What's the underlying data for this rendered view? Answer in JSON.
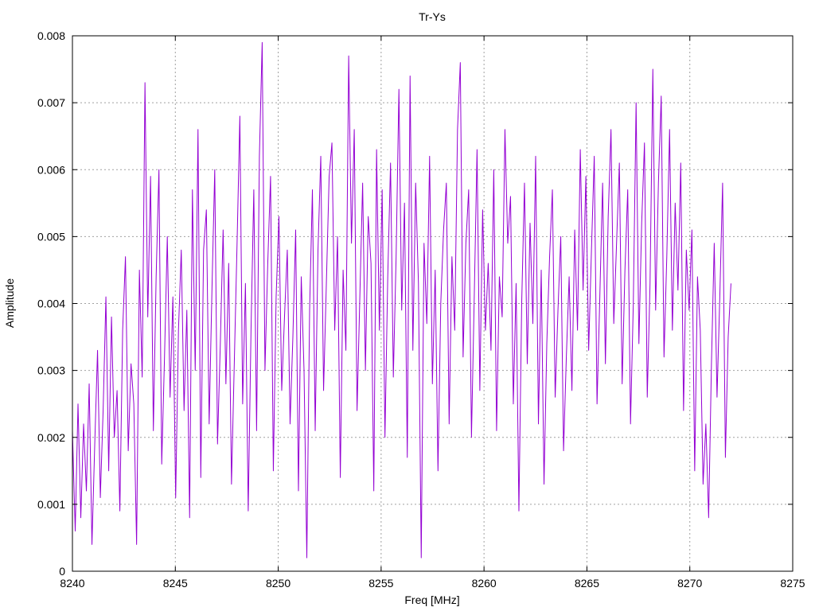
{
  "chart_data": {
    "type": "line",
    "title": "Tr-Ys",
    "xlabel": "Freq [MHz]",
    "ylabel": "Amplitude",
    "xlim": [
      8240,
      8275
    ],
    "ylim": [
      0,
      0.008
    ],
    "xticks": [
      "8240",
      "8245",
      "8250",
      "8255",
      "8260",
      "8265",
      "8270",
      "8275"
    ],
    "yticks": [
      "0",
      "0.001",
      "0.002",
      "0.003",
      "0.004",
      "0.005",
      "0.006",
      "0.007",
      "0.008"
    ],
    "grid": true,
    "legend": "none",
    "series_color": "#9400d3",
    "x_start": 8240.0,
    "x_end": 8272.0,
    "series": [
      {
        "values": [
          0.0021,
          0.0006,
          0.0025,
          0.0008,
          0.0022,
          0.0012,
          0.0028,
          0.0004,
          0.0019,
          0.0033,
          0.0011,
          0.0024,
          0.0041,
          0.0015,
          0.0038,
          0.002,
          0.0027,
          0.0009,
          0.0036,
          0.0047,
          0.0018,
          0.0031,
          0.0025,
          0.0004,
          0.0045,
          0.0029,
          0.0073,
          0.0038,
          0.0059,
          0.0021,
          0.0044,
          0.006,
          0.0016,
          0.0032,
          0.005,
          0.0026,
          0.0041,
          0.0011,
          0.0036,
          0.0048,
          0.0024,
          0.0039,
          0.0008,
          0.0057,
          0.003,
          0.0066,
          0.0014,
          0.0048,
          0.0054,
          0.0022,
          0.0042,
          0.006,
          0.0019,
          0.0034,
          0.0051,
          0.0028,
          0.0046,
          0.0013,
          0.0031,
          0.0049,
          0.0068,
          0.0025,
          0.0043,
          0.0009,
          0.0036,
          0.0057,
          0.0021,
          0.0062,
          0.0079,
          0.003,
          0.0046,
          0.0059,
          0.0015,
          0.0041,
          0.0053,
          0.0027,
          0.0038,
          0.0048,
          0.0022,
          0.0035,
          0.0051,
          0.0012,
          0.0044,
          0.003,
          0.0002,
          0.0039,
          0.0057,
          0.0021,
          0.0048,
          0.0062,
          0.0027,
          0.0043,
          0.0059,
          0.0064,
          0.0036,
          0.005,
          0.0014,
          0.0045,
          0.0033,
          0.0077,
          0.0049,
          0.0066,
          0.0024,
          0.0041,
          0.0058,
          0.003,
          0.0053,
          0.0046,
          0.0012,
          0.0063,
          0.0036,
          0.0057,
          0.002,
          0.0044,
          0.0061,
          0.0029,
          0.0047,
          0.0072,
          0.0039,
          0.0055,
          0.0017,
          0.0074,
          0.0033,
          0.0058,
          0.0043,
          0.0002,
          0.0049,
          0.0037,
          0.0062,
          0.0028,
          0.0045,
          0.0015,
          0.004,
          0.0051,
          0.0058,
          0.0022,
          0.0047,
          0.0036,
          0.0066,
          0.0076,
          0.0032,
          0.0049,
          0.0057,
          0.002,
          0.0041,
          0.0063,
          0.0027,
          0.0054,
          0.0036,
          0.0046,
          0.0033,
          0.006,
          0.0021,
          0.0044,
          0.0038,
          0.0066,
          0.0049,
          0.0056,
          0.0025,
          0.0043,
          0.0009,
          0.004,
          0.0058,
          0.0031,
          0.0052,
          0.0037,
          0.0062,
          0.0022,
          0.0045,
          0.0013,
          0.0034,
          0.0047,
          0.0057,
          0.0026,
          0.0039,
          0.005,
          0.0018,
          0.0032,
          0.0044,
          0.0027,
          0.0051,
          0.0036,
          0.0063,
          0.0042,
          0.0059,
          0.0033,
          0.0048,
          0.0062,
          0.0025,
          0.0041,
          0.0058,
          0.0031,
          0.0053,
          0.0066,
          0.0037,
          0.0049,
          0.0061,
          0.0028,
          0.0045,
          0.0057,
          0.0022,
          0.004,
          0.007,
          0.0034,
          0.0052,
          0.0064,
          0.0026,
          0.0043,
          0.0075,
          0.0039,
          0.0058,
          0.0071,
          0.0032,
          0.0047,
          0.0066,
          0.0036,
          0.0055,
          0.0042,
          0.0061,
          0.0024,
          0.0048,
          0.0039,
          0.0051,
          0.0015,
          0.0044,
          0.0036,
          0.0013,
          0.0022,
          0.0008,
          0.0031,
          0.0049,
          0.0026,
          0.0041,
          0.0058,
          0.0017,
          0.0035,
          0.0043
        ],
        "notes": "The sampled series is what's shown. Hidden detail from this array does not need to be exact."
      }
    ]
  }
}
